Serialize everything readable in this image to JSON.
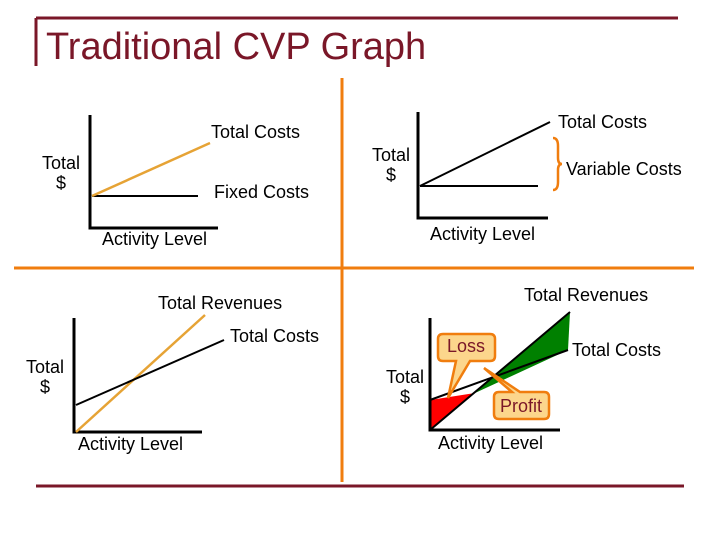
{
  "title": "Traditional CVP Graph",
  "colors": {
    "frame": "#7a1728",
    "divider": "#f07d0e",
    "cost_line": "#e6a335",
    "axis": "#000000",
    "loss_fill": "#ff0000",
    "profit_fill": "#008000",
    "callout_fill": "#fcd68c",
    "callout_border": "#f07d0e",
    "callout_text": "#7a1728"
  },
  "panels": {
    "top_left": {
      "y_label": "Total\n$",
      "total_costs": "Total Costs",
      "fixed_costs": "Fixed Costs",
      "x_label": "Activity Level"
    },
    "top_right": {
      "y_label": "Total\n$",
      "total_costs": "Total Costs",
      "variable_costs": "Variable Costs",
      "x_label": "Activity Level"
    },
    "bottom_left": {
      "y_label": "Total\n$",
      "total_revenues": "Total Revenues",
      "total_costs": "Total Costs",
      "x_label": "Activity Level"
    },
    "bottom_right": {
      "y_label": "Total\n$",
      "total_revenues": "Total Revenues",
      "total_costs": "Total Costs",
      "loss": "Loss",
      "profit": "Profit",
      "x_label": "Activity Level"
    }
  }
}
